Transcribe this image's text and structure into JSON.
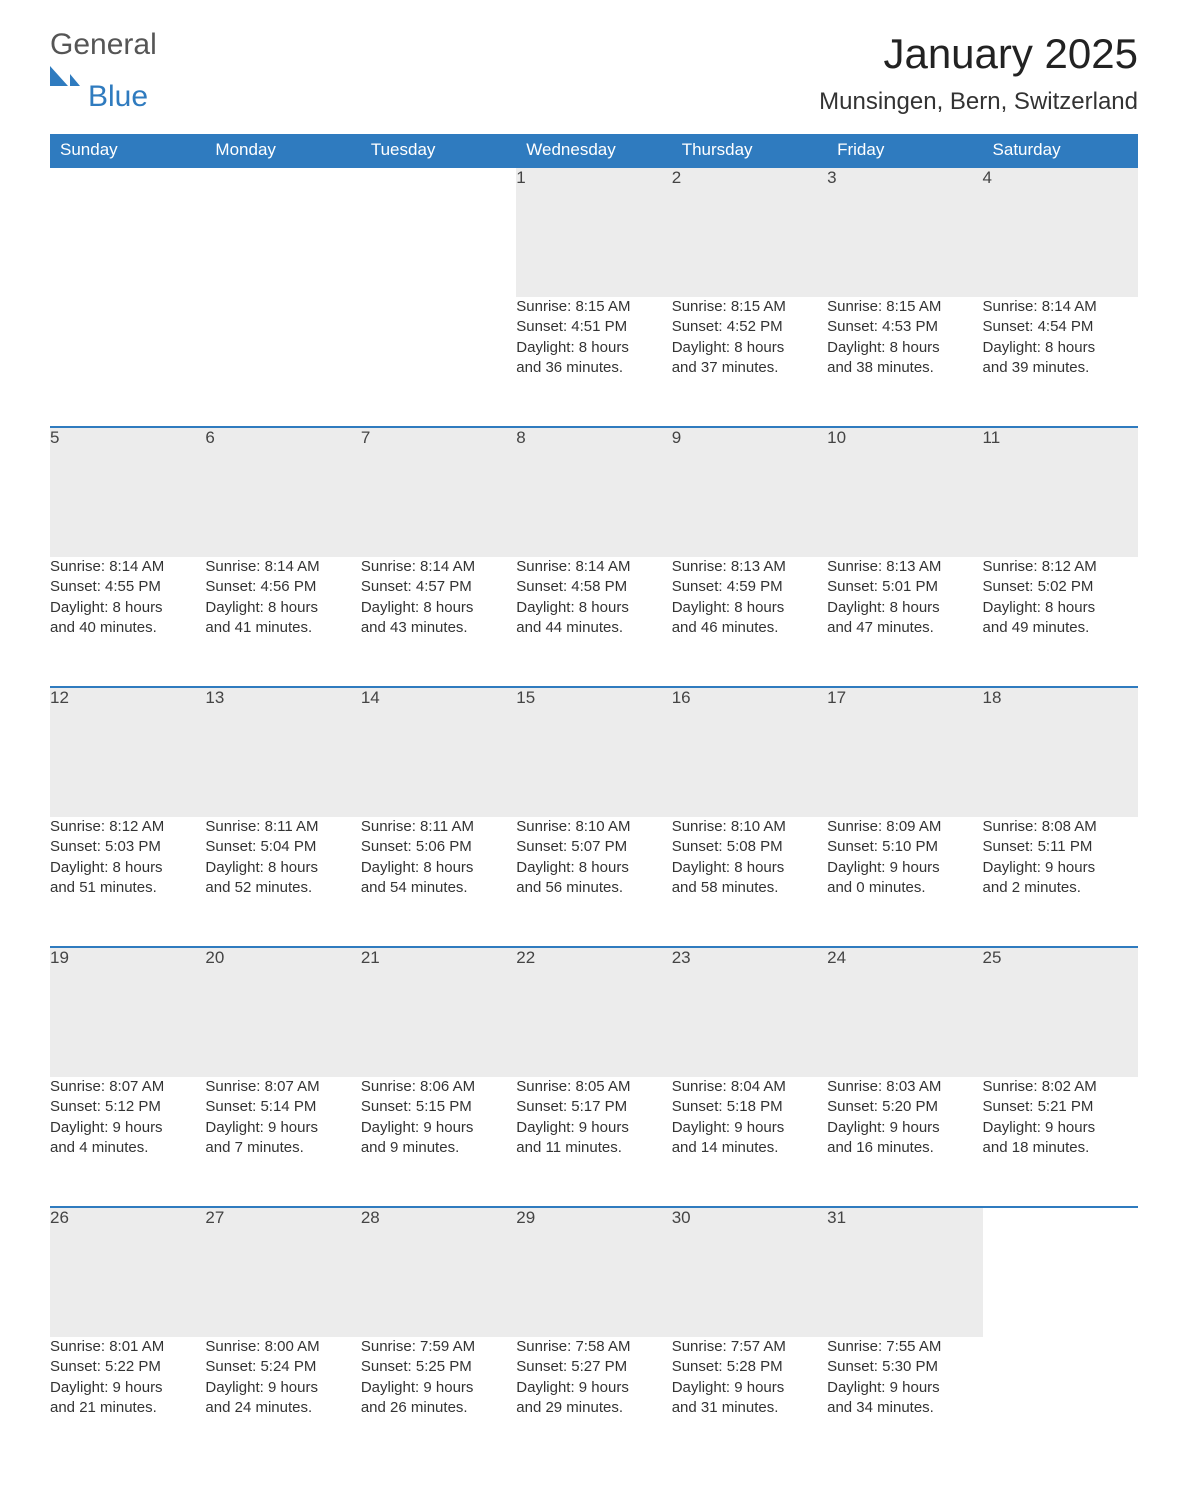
{
  "logo": {
    "word1": "General",
    "word2": "Blue",
    "accent_color": "#2f7bbf"
  },
  "title": "January 2025",
  "location": "Munsingen, Bern, Switzerland",
  "colors": {
    "header_bg": "#2f7bbf",
    "header_fg": "#ffffff",
    "daynum_bg": "#ececec",
    "rule": "#2f7bbf",
    "text": "#333333"
  },
  "weekdays": [
    "Sunday",
    "Monday",
    "Tuesday",
    "Wednesday",
    "Thursday",
    "Friday",
    "Saturday"
  ],
  "weeks": [
    [
      null,
      null,
      null,
      {
        "n": "1",
        "sunrise": "8:15 AM",
        "sunset": "4:51 PM",
        "dl1": "Daylight: 8 hours",
        "dl2": "and 36 minutes."
      },
      {
        "n": "2",
        "sunrise": "8:15 AM",
        "sunset": "4:52 PM",
        "dl1": "Daylight: 8 hours",
        "dl2": "and 37 minutes."
      },
      {
        "n": "3",
        "sunrise": "8:15 AM",
        "sunset": "4:53 PM",
        "dl1": "Daylight: 8 hours",
        "dl2": "and 38 minutes."
      },
      {
        "n": "4",
        "sunrise": "8:14 AM",
        "sunset": "4:54 PM",
        "dl1": "Daylight: 8 hours",
        "dl2": "and 39 minutes."
      }
    ],
    [
      {
        "n": "5",
        "sunrise": "8:14 AM",
        "sunset": "4:55 PM",
        "dl1": "Daylight: 8 hours",
        "dl2": "and 40 minutes."
      },
      {
        "n": "6",
        "sunrise": "8:14 AM",
        "sunset": "4:56 PM",
        "dl1": "Daylight: 8 hours",
        "dl2": "and 41 minutes."
      },
      {
        "n": "7",
        "sunrise": "8:14 AM",
        "sunset": "4:57 PM",
        "dl1": "Daylight: 8 hours",
        "dl2": "and 43 minutes."
      },
      {
        "n": "8",
        "sunrise": "8:14 AM",
        "sunset": "4:58 PM",
        "dl1": "Daylight: 8 hours",
        "dl2": "and 44 minutes."
      },
      {
        "n": "9",
        "sunrise": "8:13 AM",
        "sunset": "4:59 PM",
        "dl1": "Daylight: 8 hours",
        "dl2": "and 46 minutes."
      },
      {
        "n": "10",
        "sunrise": "8:13 AM",
        "sunset": "5:01 PM",
        "dl1": "Daylight: 8 hours",
        "dl2": "and 47 minutes."
      },
      {
        "n": "11",
        "sunrise": "8:12 AM",
        "sunset": "5:02 PM",
        "dl1": "Daylight: 8 hours",
        "dl2": "and 49 minutes."
      }
    ],
    [
      {
        "n": "12",
        "sunrise": "8:12 AM",
        "sunset": "5:03 PM",
        "dl1": "Daylight: 8 hours",
        "dl2": "and 51 minutes."
      },
      {
        "n": "13",
        "sunrise": "8:11 AM",
        "sunset": "5:04 PM",
        "dl1": "Daylight: 8 hours",
        "dl2": "and 52 minutes."
      },
      {
        "n": "14",
        "sunrise": "8:11 AM",
        "sunset": "5:06 PM",
        "dl1": "Daylight: 8 hours",
        "dl2": "and 54 minutes."
      },
      {
        "n": "15",
        "sunrise": "8:10 AM",
        "sunset": "5:07 PM",
        "dl1": "Daylight: 8 hours",
        "dl2": "and 56 minutes."
      },
      {
        "n": "16",
        "sunrise": "8:10 AM",
        "sunset": "5:08 PM",
        "dl1": "Daylight: 8 hours",
        "dl2": "and 58 minutes."
      },
      {
        "n": "17",
        "sunrise": "8:09 AM",
        "sunset": "5:10 PM",
        "dl1": "Daylight: 9 hours",
        "dl2": "and 0 minutes."
      },
      {
        "n": "18",
        "sunrise": "8:08 AM",
        "sunset": "5:11 PM",
        "dl1": "Daylight: 9 hours",
        "dl2": "and 2 minutes."
      }
    ],
    [
      {
        "n": "19",
        "sunrise": "8:07 AM",
        "sunset": "5:12 PM",
        "dl1": "Daylight: 9 hours",
        "dl2": "and 4 minutes."
      },
      {
        "n": "20",
        "sunrise": "8:07 AM",
        "sunset": "5:14 PM",
        "dl1": "Daylight: 9 hours",
        "dl2": "and 7 minutes."
      },
      {
        "n": "21",
        "sunrise": "8:06 AM",
        "sunset": "5:15 PM",
        "dl1": "Daylight: 9 hours",
        "dl2": "and 9 minutes."
      },
      {
        "n": "22",
        "sunrise": "8:05 AM",
        "sunset": "5:17 PM",
        "dl1": "Daylight: 9 hours",
        "dl2": "and 11 minutes."
      },
      {
        "n": "23",
        "sunrise": "8:04 AM",
        "sunset": "5:18 PM",
        "dl1": "Daylight: 9 hours",
        "dl2": "and 14 minutes."
      },
      {
        "n": "24",
        "sunrise": "8:03 AM",
        "sunset": "5:20 PM",
        "dl1": "Daylight: 9 hours",
        "dl2": "and 16 minutes."
      },
      {
        "n": "25",
        "sunrise": "8:02 AM",
        "sunset": "5:21 PM",
        "dl1": "Daylight: 9 hours",
        "dl2": "and 18 minutes."
      }
    ],
    [
      {
        "n": "26",
        "sunrise": "8:01 AM",
        "sunset": "5:22 PM",
        "dl1": "Daylight: 9 hours",
        "dl2": "and 21 minutes."
      },
      {
        "n": "27",
        "sunrise": "8:00 AM",
        "sunset": "5:24 PM",
        "dl1": "Daylight: 9 hours",
        "dl2": "and 24 minutes."
      },
      {
        "n": "28",
        "sunrise": "7:59 AM",
        "sunset": "5:25 PM",
        "dl1": "Daylight: 9 hours",
        "dl2": "and 26 minutes."
      },
      {
        "n": "29",
        "sunrise": "7:58 AM",
        "sunset": "5:27 PM",
        "dl1": "Daylight: 9 hours",
        "dl2": "and 29 minutes."
      },
      {
        "n": "30",
        "sunrise": "7:57 AM",
        "sunset": "5:28 PM",
        "dl1": "Daylight: 9 hours",
        "dl2": "and 31 minutes."
      },
      {
        "n": "31",
        "sunrise": "7:55 AM",
        "sunset": "5:30 PM",
        "dl1": "Daylight: 9 hours",
        "dl2": "and 34 minutes."
      },
      null
    ]
  ],
  "labels": {
    "sunrise_prefix": "Sunrise: ",
    "sunset_prefix": "Sunset: "
  }
}
